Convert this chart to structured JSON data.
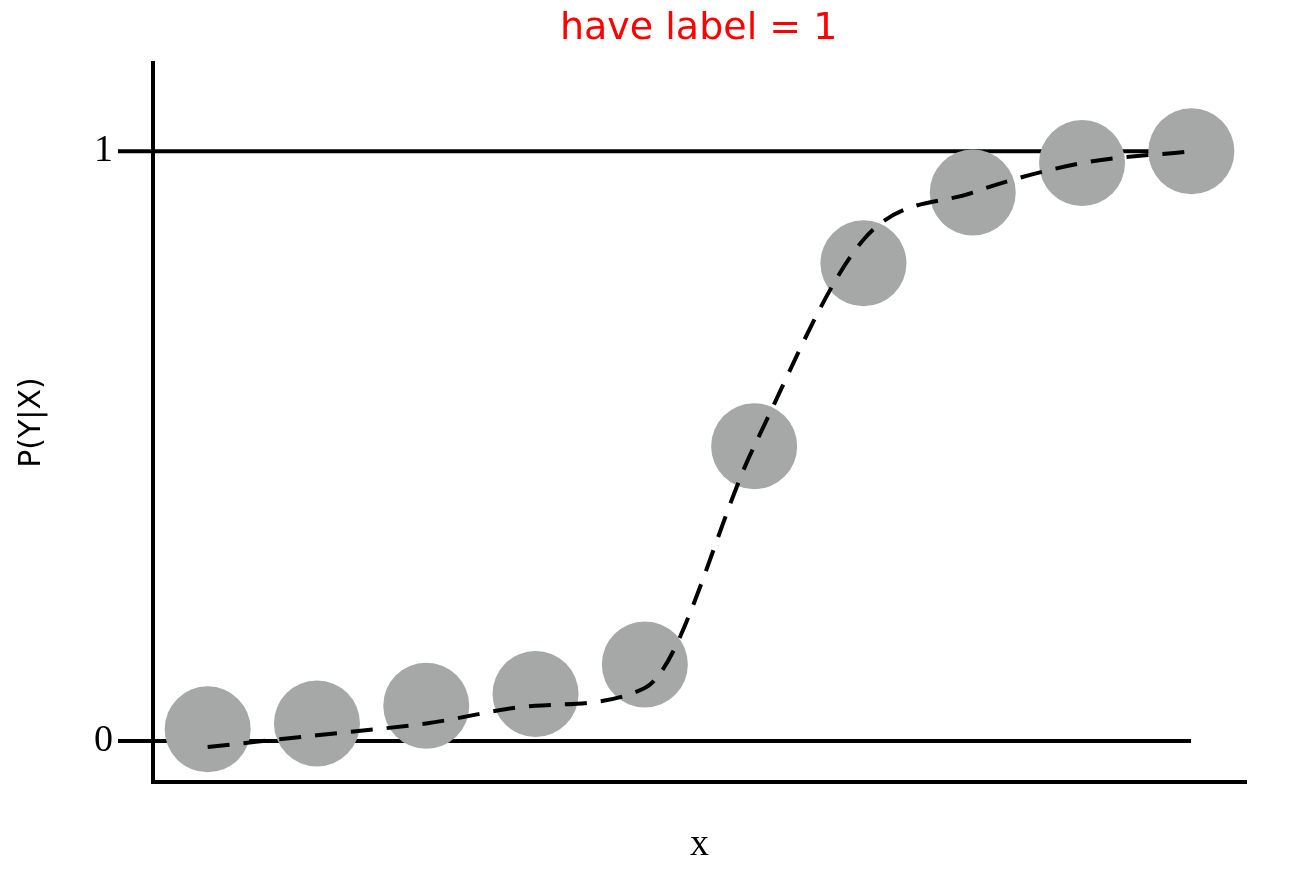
{
  "chart_data": {
    "type": "scatter",
    "xlabel": "x",
    "ylabel": "P(Y|X)",
    "annotations": [
      "have label = 1"
    ],
    "categories": [
      null,
      null,
      null,
      null,
      null,
      null,
      null,
      null,
      null,
      null
    ],
    "ylim": [
      -0.07,
      1.15
    ],
    "yticks": [
      0,
      1
    ],
    "tick_labels": "y",
    "grid": false,
    "legend": false,
    "marker": "circle",
    "ref_lines": [
      {
        "axis": "y",
        "value": 0,
        "color": "#000000"
      },
      {
        "axis": "y",
        "value": 1,
        "color": "#000000"
      }
    ],
    "series": [
      {
        "type": "line",
        "color": "#000000",
        "line_style": "dashed",
        "marker": "none",
        "values": [
          -0.01,
          0.01,
          0.03,
          0.06,
          0.09,
          0.5,
          0.85,
          0.93,
          0.98,
          1.0
        ]
      },
      {
        "color": "#a5a8a6",
        "values": [
          0.02,
          0.03,
          0.06,
          0.08,
          0.13,
          0.5,
          0.81,
          0.93,
          0.98,
          1.0
        ]
      }
    ]
  }
}
